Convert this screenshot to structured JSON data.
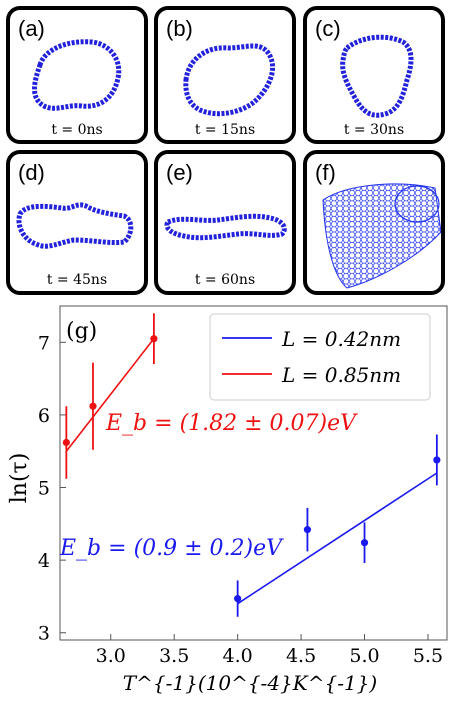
{
  "panels": [
    {
      "label": "(a)",
      "caption": "t = 0ns"
    },
    {
      "label": "(b)",
      "caption": "t = 15ns"
    },
    {
      "label": "(c)",
      "caption": "t = 30ns"
    },
    {
      "label": "(d)",
      "caption": "t = 45ns"
    },
    {
      "label": "(e)",
      "caption": "t = 60ns"
    },
    {
      "label": "(f)",
      "caption": ""
    }
  ],
  "colors": {
    "ring": "#2222dd",
    "blue": "#1a1aee",
    "red": "#ee1111"
  },
  "chart_data": {
    "type": "scatter",
    "panel_label": "(g)",
    "xlabel": "T^{-1}(10^{-4}K^{-1})",
    "ylabel": "ln(τ)",
    "xlim": [
      2.6,
      5.65
    ],
    "ylim": [
      2.9,
      7.5
    ],
    "xticks": [
      3.0,
      3.5,
      4.0,
      4.5,
      5.0,
      5.5
    ],
    "xtick_labels": [
      "3.0",
      "3.5",
      "4.0",
      "4.5",
      "5.0",
      "5.5"
    ],
    "yticks": [
      3,
      4,
      5,
      6,
      7
    ],
    "ytick_labels": [
      "3",
      "4",
      "5",
      "6",
      "7"
    ],
    "legend_position": "top-right",
    "series": [
      {
        "name": "L = 0.42nm",
        "color": "#1a1aee",
        "x": [
          4.0,
          4.55,
          5.0,
          5.57
        ],
        "y": [
          3.47,
          4.42,
          4.24,
          5.38
        ],
        "err": [
          0.25,
          0.3,
          0.28,
          0.35
        ],
        "fit": {
          "x": [
            4.0,
            5.57
          ],
          "y": [
            3.4,
            5.2
          ]
        },
        "annotation": "E_b = (0.9 ± 0.2)eV"
      },
      {
        "name": "L = 0.85nm",
        "color": "#ee1111",
        "x": [
          2.65,
          2.86,
          3.34
        ],
        "y": [
          5.62,
          6.12,
          7.05
        ],
        "err": [
          0.5,
          0.6,
          0.35
        ],
        "fit": {
          "x": [
            2.65,
            3.34
          ],
          "y": [
            5.5,
            7.05
          ]
        },
        "annotation": "E_b = (1.82 ± 0.07)eV"
      }
    ]
  }
}
